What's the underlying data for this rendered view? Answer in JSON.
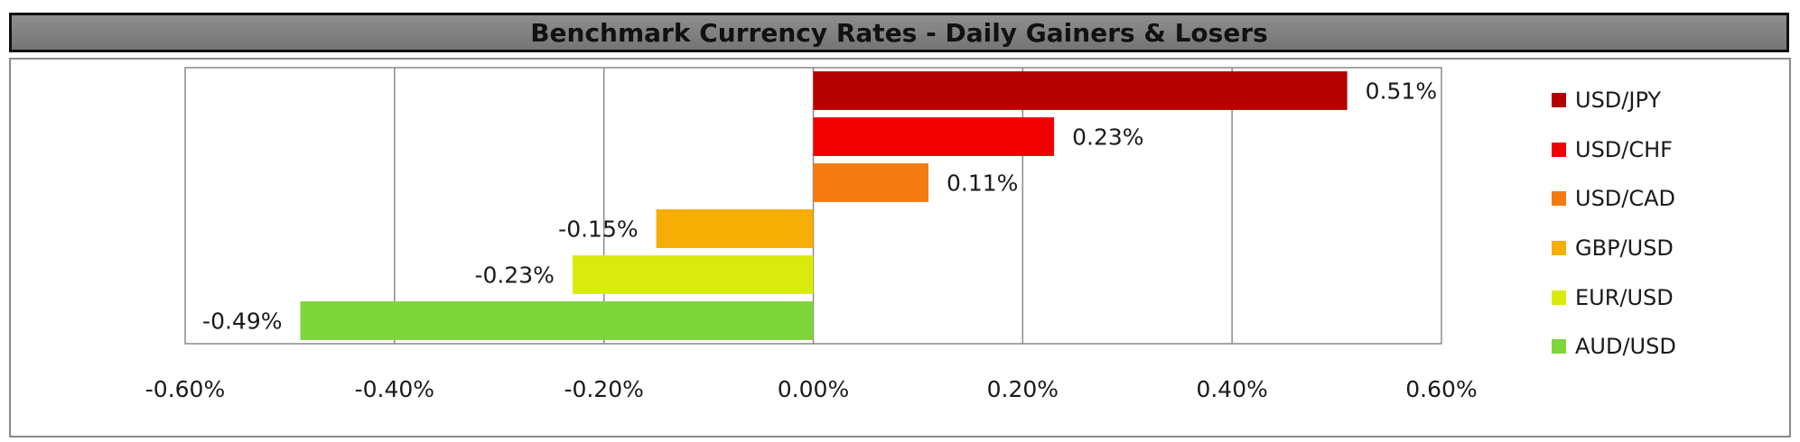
{
  "title": "Benchmark Currency Rates - Daily Gainers & Losers",
  "chart_data": {
    "type": "bar",
    "orientation": "horizontal",
    "title": "Benchmark Currency Rates - Daily Gainers & Losers",
    "xlabel": "",
    "ylabel": "",
    "xlim": [
      -0.006,
      0.006
    ],
    "xticks": [
      -0.006,
      -0.004,
      -0.002,
      0,
      0.002,
      0.004,
      0.006
    ],
    "xtick_labels": [
      "-0.60%",
      "-0.40%",
      "-0.20%",
      "0.00%",
      "0.20%",
      "0.40%",
      "0.60%"
    ],
    "categories": [
      "USD/JPY",
      "USD/CHF",
      "USD/CAD",
      "GBP/USD",
      "EUR/USD",
      "AUD/USD"
    ],
    "values": [
      0.0051,
      0.0023,
      0.0011,
      -0.0015,
      -0.0023,
      -0.0049
    ],
    "value_labels": [
      "0.51%",
      "0.23%",
      "0.11%",
      "-0.15%",
      "-0.23%",
      "-0.49%"
    ],
    "colors": [
      "#b50000",
      "#f20000",
      "#f47a12",
      "#f6ad04",
      "#d9eb0c",
      "#7ed63a"
    ],
    "grid": "vertical",
    "legend_position": "right"
  }
}
